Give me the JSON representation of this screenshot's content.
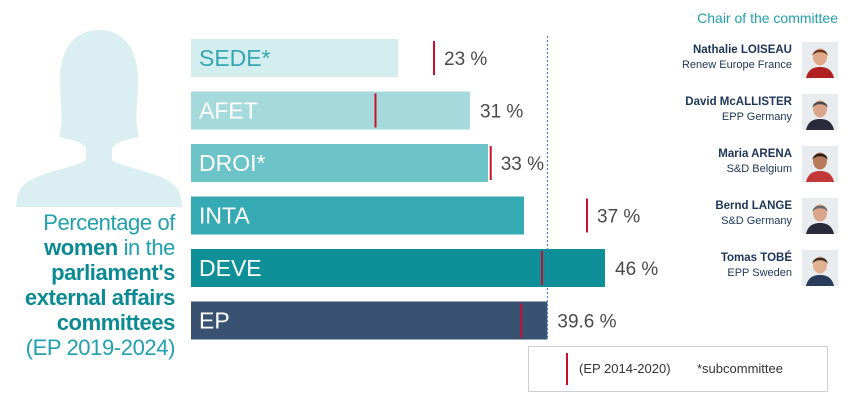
{
  "caption": {
    "line1": "Percentage of",
    "line2_bold": "women",
    "line2_rest": " in the",
    "line3": "parliament's",
    "line4": "external affairs",
    "line5": "committees",
    "line6": "(EP 2019-2024)"
  },
  "chairs_title": "Chair of the committee",
  "chairs": [
    {
      "name": "Nathalie LOISEAU",
      "group": "Renew Europe France"
    },
    {
      "name": "David McALLISTER",
      "group": "EPP Germany"
    },
    {
      "name": "Maria ARENA",
      "group": "S&D Belgium"
    },
    {
      "name": "Bernd LANGE",
      "group": "S&D Germany"
    },
    {
      "name": "Tomas TOBÉ",
      "group": "EPP Sweden"
    }
  ],
  "legend": {
    "marker_label": "(EP 2014-2020)",
    "note": "*subcommittee"
  },
  "colors": {
    "SEDE": "#d4eeef",
    "AFET": "#a5d9dc",
    "DROI": "#6cc3c8",
    "INTA": "#35aab3",
    "DEVE": "#0f8f97",
    "EP": "#3a5272",
    "marker": "#c8102e",
    "reference_line": "#3a78c8"
  },
  "chart_data": {
    "type": "bar",
    "orientation": "horizontal",
    "categories": [
      "SEDE*",
      "AFET",
      "DROI*",
      "INTA",
      "DEVE",
      "EP"
    ],
    "value_labels": [
      "23 %",
      "31 %",
      "33 %",
      "37 %",
      "46 %",
      "39.6 %"
    ],
    "series": [
      {
        "name": "",
        "values": [
          23,
          31,
          33,
          37,
          46,
          39.6
        ]
      }
    ],
    "previous_term": {
      "name": "(EP 2014-2020)",
      "values": [
        27,
        20.5,
        33.3,
        44,
        39,
        36.7
      ]
    },
    "reference_value": 39.6,
    "xlim": [
      0,
      52
    ]
  }
}
